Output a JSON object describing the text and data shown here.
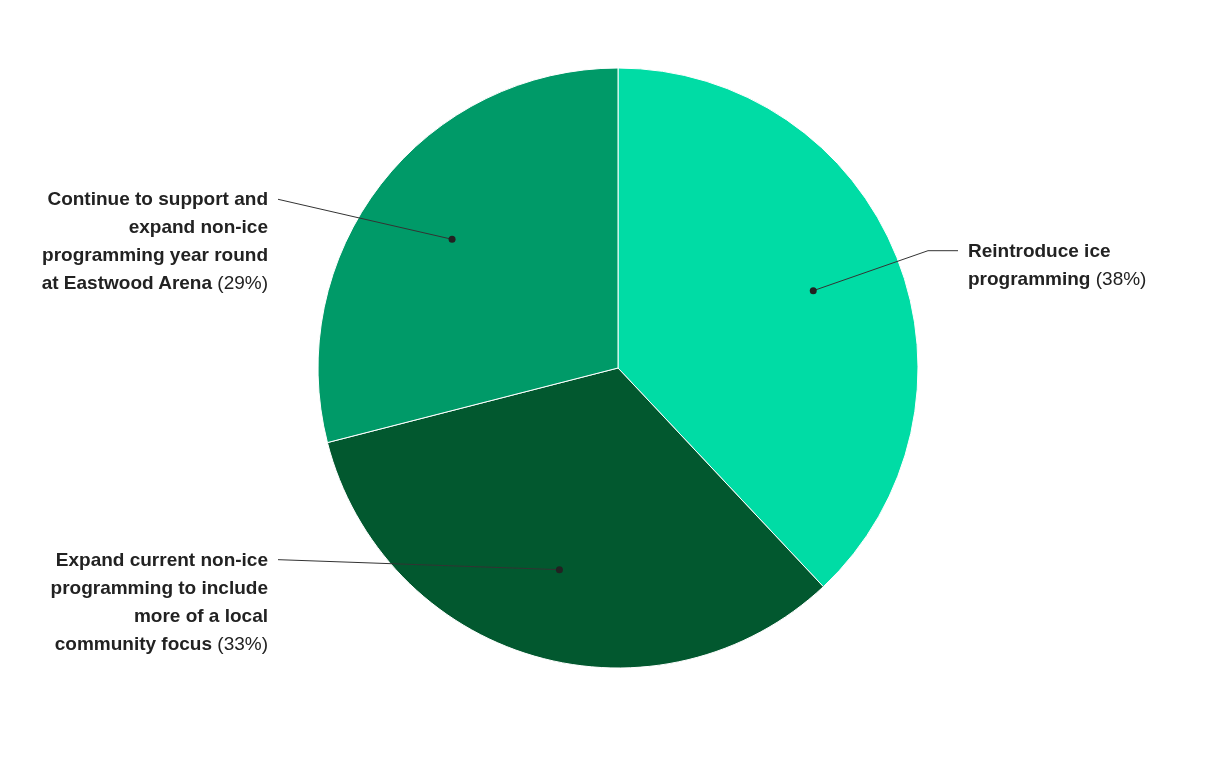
{
  "chart_data": {
    "type": "pie",
    "categories": [
      "Reintroduce ice programming",
      "Expand current non-ice programming to include more of a local community focus",
      "Continue to support and expand non-ice programming year round at Eastwood Arena"
    ],
    "values": [
      38,
      33,
      29
    ],
    "colors": [
      "#00dca5",
      "#02582f",
      "#009a68"
    ],
    "value_labels": [
      "(38%)",
      "(33%)",
      "(29%)"
    ]
  }
}
